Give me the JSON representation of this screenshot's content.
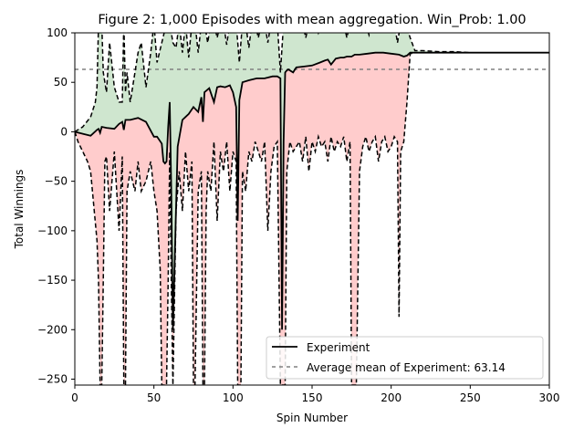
{
  "chart_data": {
    "type": "line",
    "title": "Figure 2: 1,000 Episodes with mean aggregation. Win_Prob: 1.00",
    "xlabel": "Spin Number",
    "ylabel": "Total Winnings",
    "xlim": [
      0,
      300
    ],
    "ylim": [
      -256,
      100
    ],
    "xticks": [
      "0",
      "50",
      "100",
      "150",
      "200",
      "250",
      "300"
    ],
    "yticks": [
      "−250",
      "−200",
      "−150",
      "−100",
      "−50",
      "0",
      "50",
      "100"
    ],
    "grid": false,
    "legend": {
      "placement": "lower-right",
      "entries": [
        "Experiment",
        "Average mean of Experiment: 63.14"
      ]
    },
    "reference_line": {
      "value": 63.14,
      "label": "Average mean of Experiment: 63.14"
    },
    "colors": {
      "mean": "#000000",
      "upper_fill": "#cfe6cf",
      "lower_fill": "#ffcccc",
      "bound": "#000000",
      "reference": "#808080"
    },
    "series": [
      {
        "name": "Experiment",
        "x": [
          0,
          5,
          10,
          14,
          15,
          16,
          17,
          20,
          25,
          28,
          30,
          31,
          32,
          35,
          40,
          45,
          50,
          52,
          55,
          56,
          57,
          58,
          59,
          60,
          61,
          62,
          65,
          68,
          70,
          72,
          75,
          78,
          80,
          81,
          82,
          85,
          88,
          90,
          92,
          95,
          98,
          100,
          102,
          103,
          104,
          106,
          110,
          115,
          120,
          125,
          128,
          130,
          131,
          132,
          133,
          134,
          135,
          138,
          140,
          145,
          150,
          155,
          158,
          160,
          162,
          165,
          168,
          170,
          172,
          175,
          177,
          180,
          185,
          190,
          195,
          200,
          205,
          208,
          210,
          212,
          215,
          220,
          230,
          240,
          250,
          260,
          270,
          280,
          290,
          300
        ],
        "y": [
          0,
          -2,
          -4,
          2,
          3,
          -1,
          5,
          4,
          3,
          8,
          10,
          2,
          12,
          12,
          14,
          10,
          -5,
          -5,
          -12,
          -30,
          -32,
          -30,
          5,
          30,
          -60,
          -200,
          -15,
          12,
          15,
          18,
          25,
          20,
          35,
          10,
          40,
          44,
          30,
          45,
          46,
          45,
          47,
          40,
          25,
          -90,
          32,
          50,
          52,
          54,
          54,
          56,
          56,
          54,
          -200,
          -10,
          60,
          62,
          63,
          60,
          65,
          66,
          67,
          70,
          72,
          73,
          68,
          74,
          75,
          75,
          76,
          76,
          78,
          78,
          79,
          80,
          80,
          79,
          78,
          76,
          77,
          80,
          80,
          80,
          80,
          80,
          80,
          80,
          80,
          80,
          80,
          80
        ]
      }
    ],
    "upper_bound": {
      "x": [
        0,
        5,
        10,
        13,
        14,
        15,
        16,
        17,
        18,
        20,
        22,
        25,
        28,
        30,
        31,
        32,
        33,
        35,
        38,
        40,
        42,
        45,
        48,
        50,
        52,
        55,
        58,
        60,
        62,
        64,
        66,
        68,
        70,
        72,
        74,
        76,
        78,
        80,
        82,
        84,
        86,
        88,
        90,
        92,
        94,
        96,
        98,
        100,
        102,
        104,
        106,
        108,
        110,
        112,
        114,
        116,
        118,
        120,
        122,
        124,
        126,
        128,
        130,
        132,
        134,
        136,
        138,
        140,
        142,
        144,
        146,
        148,
        150,
        152,
        154,
        156,
        158,
        160,
        162,
        164,
        166,
        168,
        170,
        172,
        174,
        176,
        178,
        180,
        182,
        184,
        186,
        188,
        190,
        192,
        194,
        196,
        198,
        200,
        202,
        204,
        206,
        208,
        210,
        212,
        215,
        220,
        230,
        240,
        250,
        260,
        270,
        280,
        290,
        300
      ],
      "y": [
        0,
        5,
        15,
        30,
        45,
        110,
        105,
        110,
        60,
        40,
        90,
        45,
        30,
        30,
        110,
        40,
        60,
        30,
        60,
        80,
        90,
        45,
        80,
        110,
        70,
        90,
        110,
        110,
        90,
        85,
        110,
        80,
        110,
        75,
        110,
        110,
        80,
        110,
        110,
        90,
        110,
        110,
        95,
        110,
        110,
        88,
        110,
        110,
        110,
        70,
        110,
        110,
        85,
        110,
        110,
        95,
        110,
        110,
        90,
        110,
        110,
        110,
        60,
        110,
        110,
        110,
        100,
        110,
        110,
        110,
        95,
        110,
        110,
        110,
        100,
        110,
        110,
        110,
        110,
        105,
        110,
        110,
        110,
        95,
        110,
        110,
        110,
        110,
        110,
        110,
        98,
        110,
        110,
        110,
        110,
        110,
        110,
        110,
        110,
        90,
        110,
        110,
        105,
        95,
        82,
        82,
        81,
        81,
        80,
        80,
        80,
        80,
        80,
        80
      ]
    },
    "lower_bound": {
      "x": [
        0,
        2,
        5,
        8,
        10,
        14,
        15,
        16,
        17,
        18,
        19,
        20,
        22,
        25,
        28,
        30,
        31,
        32,
        33,
        35,
        38,
        40,
        42,
        45,
        48,
        50,
        52,
        54,
        55,
        56,
        57,
        58,
        59,
        60,
        61,
        62,
        64,
        66,
        68,
        70,
        72,
        74,
        75,
        76,
        78,
        80,
        81,
        82,
        83,
        84,
        86,
        88,
        90,
        92,
        94,
        96,
        98,
        100,
        102,
        103,
        104,
        105,
        106,
        108,
        110,
        112,
        114,
        116,
        118,
        120,
        122,
        124,
        126,
        128,
        130,
        131,
        132,
        133,
        134,
        136,
        138,
        140,
        142,
        144,
        146,
        148,
        150,
        152,
        154,
        156,
        158,
        160,
        162,
        164,
        166,
        168,
        170,
        172,
        174,
        175,
        176,
        178,
        180,
        182,
        184,
        186,
        188,
        190,
        192,
        194,
        196,
        198,
        200,
        202,
        204,
        205,
        206,
        208,
        210,
        212,
        215,
        220,
        230,
        240,
        250,
        260,
        270,
        280,
        290,
        300
      ],
      "y": [
        0,
        -10,
        -20,
        -30,
        -40,
        -110,
        -152,
        -256,
        -256,
        -150,
        -30,
        -25,
        -80,
        -20,
        -100,
        -25,
        -256,
        -256,
        -60,
        -40,
        -60,
        -30,
        -60,
        -50,
        -30,
        -60,
        -80,
        -140,
        -256,
        -256,
        -256,
        -256,
        -150,
        -20,
        -150,
        -256,
        -80,
        -40,
        -80,
        -20,
        -60,
        -30,
        -256,
        -256,
        -60,
        -40,
        -256,
        -256,
        -80,
        -40,
        -60,
        -10,
        -90,
        -20,
        -40,
        -10,
        -60,
        -20,
        -30,
        -256,
        -256,
        -256,
        -40,
        -60,
        -20,
        -30,
        -10,
        -20,
        -30,
        -10,
        -100,
        -40,
        -15,
        -10,
        -256,
        -256,
        -256,
        -256,
        -40,
        -10,
        -20,
        -15,
        -10,
        -30,
        -5,
        -40,
        -10,
        -20,
        -5,
        -15,
        -10,
        -30,
        -5,
        -20,
        -10,
        -15,
        -5,
        -30,
        -10,
        -256,
        -256,
        -256,
        -40,
        -15,
        -5,
        -20,
        -10,
        -5,
        -30,
        -10,
        -5,
        -20,
        -15,
        -5,
        -10,
        -187,
        -20,
        -10,
        30,
        79,
        80,
        80,
        80,
        80,
        80,
        80,
        80,
        80,
        80,
        80
      ]
    }
  }
}
